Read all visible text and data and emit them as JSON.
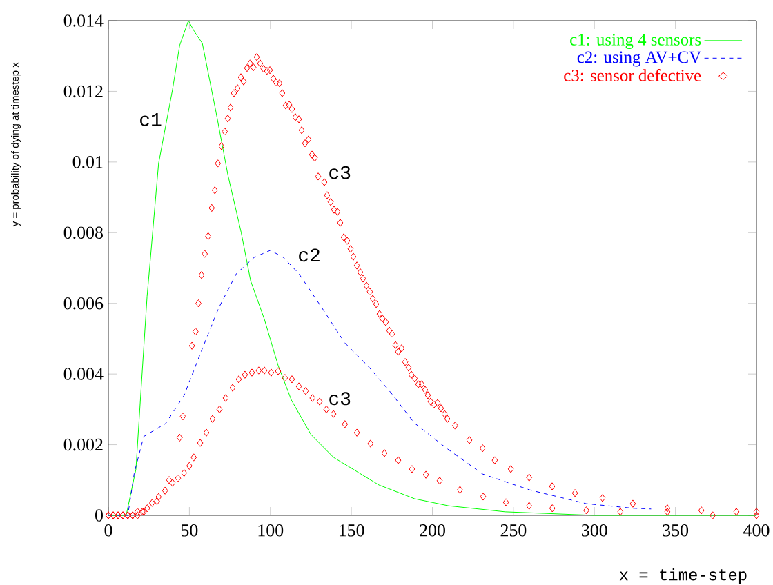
{
  "chart_data": {
    "type": "line",
    "xlabel": "x = time-step",
    "ylabel": "y = probability of dying at timestep x",
    "xlim": [
      0,
      400
    ],
    "ylim": [
      0,
      0.014
    ],
    "xticks": [
      0,
      50,
      100,
      150,
      200,
      250,
      300,
      350,
      400
    ],
    "yticks": [
      0,
      0.002,
      0.004,
      0.006,
      0.008,
      0.01,
      0.012,
      0.014
    ],
    "legend": "top right",
    "annotations": [
      "c1",
      "c3",
      "c2",
      "c3"
    ],
    "series": [
      {
        "name": "c1: using 4 sensors",
        "line_style": "solid",
        "color": "#00ff00",
        "x": [
          0,
          11,
          17,
          23.9,
          25.5,
          31,
          39.6,
          44,
          49.4,
          53,
          58,
          66.5,
          73.7,
          82,
          87.8,
          96.3,
          104.8,
          113,
          125,
          139,
          167,
          189,
          210,
          245,
          300,
          400
        ],
        "values": [
          0,
          0,
          0.0013,
          0.0062,
          0.00703,
          0.00996,
          0.01205,
          0.0133,
          0.014,
          0.0137,
          0.01336,
          0.0114,
          0.00965,
          0.008,
          0.00664,
          0.00555,
          0.00424,
          0.00326,
          0.00229,
          0.00164,
          0.00086,
          0.00047,
          0.00027,
          0.0001,
          0,
          0
        ]
      },
      {
        "name": "c2: using AV+CV",
        "line_style": "dashed",
        "color": "#0000ff",
        "x": [
          0,
          12,
          16,
          21.8,
          35.4,
          46.8,
          56.7,
          68,
          79,
          90,
          100,
          108,
          117.6,
          132,
          146,
          160,
          174.6,
          188.7,
          208.7,
          231,
          260,
          295,
          324,
          335
        ],
        "values": [
          0,
          0,
          0.0012,
          0.00223,
          0.0026,
          0.0034,
          0.00457,
          0.00586,
          0.00684,
          0.0073,
          0.0075,
          0.0073,
          0.00684,
          0.00586,
          0.00488,
          0.00424,
          0.00346,
          0.00262,
          0.0019,
          0.00117,
          0.00072,
          0.00033,
          0.0002,
          0.00018
        ]
      },
      {
        "name": "c3: sensor defective",
        "type": "scatter",
        "marker": "diamond",
        "color": "#ff0000",
        "x": [
          0,
          3,
          6,
          9,
          12,
          15,
          18,
          21.8,
          30,
          37.5,
          44,
          46,
          51.6,
          53.8,
          55.6,
          57.5,
          59.5,
          61.6,
          63.8,
          65.7,
          67.6,
          69.8,
          71.9,
          73.7,
          75.4,
          77.5,
          79.7,
          81.8,
          83.5,
          85.6,
          87.5,
          89.5,
          91.6,
          93.7,
          95.8,
          97.9,
          99.7,
          101.8,
          103.5,
          105.6,
          107.3,
          109.5,
          111.6,
          113.3,
          115.4,
          117.6,
          119.3,
          121.4,
          123.5,
          125.7,
          127.4,
          129.5,
          133.3,
          135,
          137.2,
          139.3,
          141.4,
          143.1,
          145.3,
          147.4,
          149.5,
          151.2,
          153.4,
          155.5,
          157.2,
          159.3,
          161.4,
          163.2,
          165.3,
          167.4,
          169.1,
          171.2,
          173.4,
          175.1,
          177.2,
          178.9,
          181,
          183.2,
          185.3,
          187,
          189.1,
          191.3,
          193.4,
          195.5,
          197.2,
          198.9,
          201,
          203.2,
          205.3,
          207.5,
          209.2,
          214,
          222.8,
          231,
          238.5,
          248.4,
          259.7,
          273.9,
          288,
          305,
          323.7,
          345,
          366,
          387.6,
          400
        ],
        "values": [
          0,
          0,
          0,
          0,
          0,
          0,
          0,
          0.0001,
          0.0004,
          0.001,
          0.0022,
          0.0028,
          0.0048,
          0.0052,
          0.006,
          0.0068,
          0.0074,
          0.0079,
          0.0087,
          0.0092,
          0.00996,
          0.01045,
          0.01086,
          0.01123,
          0.01154,
          0.01195,
          0.01209,
          0.0124,
          0.01228,
          0.01266,
          0.01279,
          0.01268,
          0.01297,
          0.01279,
          0.01264,
          0.01258,
          0.0126,
          0.01236,
          0.01225,
          0.01223,
          0.01195,
          0.0116,
          0.01162,
          0.0115,
          0.01127,
          0.01121,
          0.0109,
          0.01053,
          0.01064,
          0.01021,
          0.01012,
          0.00959,
          0.00943,
          0.00906,
          0.00887,
          0.00865,
          0.00859,
          0.00828,
          0.00787,
          0.00777,
          0.00754,
          0.00732,
          0.00707,
          0.00688,
          0.0067,
          0.0065,
          0.00633,
          0.00613,
          0.00598,
          0.0057,
          0.00557,
          0.00547,
          0.00523,
          0.00514,
          0.00482,
          0.00463,
          0.00473,
          0.00434,
          0.00418,
          0.00398,
          0.00387,
          0.00371,
          0.00371,
          0.00355,
          0.0034,
          0.00322,
          0.00314,
          0.00318,
          0.00303,
          0.00287,
          0.00273,
          0.00254,
          0.00213,
          0.0019,
          0.00156,
          0.00131,
          0.00107,
          0.00082,
          0.00063,
          0.00049,
          0.00033,
          0.0002,
          0.00014,
          0.0001,
          0.0001
        ]
      },
      {
        "type": "scatter",
        "marker": "diamond",
        "color": "#ff0000",
        "x": [
          0,
          3,
          6,
          9,
          12,
          15,
          18,
          21,
          24,
          27,
          31,
          35,
          39.6,
          43,
          46.7,
          50,
          52.7,
          56.7,
          60.5,
          64.3,
          68.6,
          72.4,
          76.7,
          80.5,
          84.3,
          88.6,
          92.8,
          96.3,
          100.5,
          104.8,
          109,
          113.3,
          117.6,
          121.8,
          126,
          130.4,
          134.6,
          138.9,
          146,
          153.4,
          161.8,
          170.4,
          178.9,
          187.4,
          196,
          204.5,
          217,
          231.3,
          245.4,
          259.7,
          274,
          295,
          316,
          345,
          373,
          400
        ],
        "values": [
          0,
          0,
          0,
          0,
          0,
          0,
          0.0001,
          0.0001,
          0.0002,
          0.00035,
          0.00052,
          0.0007,
          0.00092,
          0.00105,
          0.0012,
          0.0014,
          0.00164,
          0.00205,
          0.00234,
          0.00273,
          0.003,
          0.00332,
          0.00361,
          0.00385,
          0.00398,
          0.00404,
          0.0041,
          0.0041,
          0.00404,
          0.00408,
          0.00389,
          0.00385,
          0.00365,
          0.00352,
          0.00332,
          0.00322,
          0.003,
          0.00287,
          0.00258,
          0.00234,
          0.00203,
          0.00176,
          0.00156,
          0.00131,
          0.00115,
          0.00098,
          0.00072,
          0.00053,
          0.00037,
          0.00027,
          0.0002,
          0.00014,
          0.0001,
          0.0001,
          0,
          0
        ]
      }
    ]
  }
}
